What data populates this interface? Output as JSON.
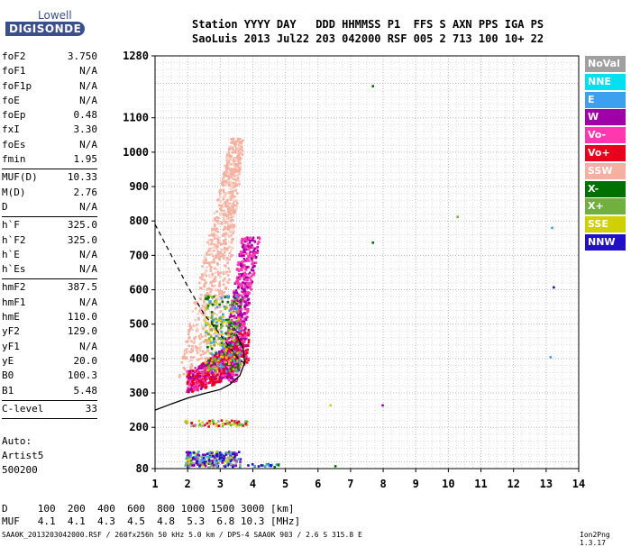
{
  "logo": {
    "line1": "Lowell",
    "line2": "DIGISONDE"
  },
  "header": {
    "row1": "Station YYYY DAY   DDD HHMMSS P1  FFS S AXN PPS IGA PS",
    "row2": "SaoLuis 2013 Jul22 203 042000 RSF 005 2 713 100 10+ 22"
  },
  "params": [
    {
      "label": "foF2",
      "value": "3.750"
    },
    {
      "label": "foF1",
      "value": "N/A"
    },
    {
      "label": "foF1p",
      "value": "N/A"
    },
    {
      "label": "foE",
      "value": "N/A"
    },
    {
      "label": "foEp",
      "value": "0.48"
    },
    {
      "label": "fxI",
      "value": "3.30"
    },
    {
      "label": "foEs",
      "value": "N/A"
    },
    {
      "label": "fmin",
      "value": "1.95"
    },
    {
      "sep": true
    },
    {
      "label": "MUF(D)",
      "value": "10.33"
    },
    {
      "label": "M(D)",
      "value": "2.76"
    },
    {
      "label": "D",
      "value": "N/A"
    },
    {
      "sep": true
    },
    {
      "label": "h`F",
      "value": "325.0"
    },
    {
      "label": "h`F2",
      "value": "325.0"
    },
    {
      "label": "h`E",
      "value": "N/A"
    },
    {
      "label": "h`Es",
      "value": "N/A"
    },
    {
      "sep": true
    },
    {
      "label": "hmF2",
      "value": "387.5"
    },
    {
      "label": "hmF1",
      "value": "N/A"
    },
    {
      "label": "hmE",
      "value": "110.0"
    },
    {
      "label": "yF2",
      "value": "129.0"
    },
    {
      "label": "yF1",
      "value": "N/A"
    },
    {
      "label": "yE",
      "value": "20.0"
    },
    {
      "label": "B0",
      "value": "100.3"
    },
    {
      "label": "B1",
      "value": "5.48"
    },
    {
      "sep": true
    },
    {
      "label": "C-level",
      "value": "33"
    },
    {
      "sep": true
    }
  ],
  "autoscaling": {
    "line1": "Auto:",
    "line2": "Artist5",
    "line3": "500200"
  },
  "legend": [
    {
      "label": "NoVal",
      "color": "#a0a0a0"
    },
    {
      "label": "NNE",
      "color": "#00e0f0"
    },
    {
      "label": "E",
      "color": "#3ca0ee"
    },
    {
      "label": "W",
      "color": "#a000a8"
    },
    {
      "label": "Vo-",
      "color": "#ff38b0"
    },
    {
      "label": "Vo+",
      "color": "#e8001c"
    },
    {
      "label": "SSW",
      "color": "#f4b0a0"
    },
    {
      "label": "X-",
      "color": "#007000"
    },
    {
      "label": "X+",
      "color": "#70b040"
    },
    {
      "label": "SSE",
      "color": "#d0d000"
    },
    {
      "label": "NNW",
      "color": "#2010c8"
    }
  ],
  "bottom": {
    "d_row": "D     100  200  400  600  800 1000 1500 3000 [km]",
    "muf_row": "MUF   4.1  4.1  4.3  4.5  4.8  5.3  6.8 10.3 [MHz]"
  },
  "footer": "SAA0K_2013203042000.RSF / 260fx256h 50 kHz 5.0 km / DPS-4 SAA0K 903 / 2.6 S 315.8 E",
  "version": "Ion2Png 1.3.17",
  "chart_data": {
    "type": "scatter",
    "xlim": [
      1,
      14
    ],
    "ylim": [
      80,
      1280
    ],
    "x_ticks": [
      1,
      2,
      3,
      4,
      5,
      6,
      7,
      8,
      9,
      10,
      11,
      12,
      13,
      14
    ],
    "y_ticks": [
      80,
      200,
      300,
      400,
      500,
      600,
      700,
      800,
      900,
      1000,
      1100,
      1280
    ],
    "grid": true,
    "profile_curve": [
      [
        1.0,
        250
      ],
      [
        1.5,
        268
      ],
      [
        2.0,
        285
      ],
      [
        2.5,
        298
      ],
      [
        3.0,
        310
      ],
      [
        3.3,
        325
      ],
      [
        3.6,
        350
      ],
      [
        3.75,
        387.5
      ],
      [
        3.7,
        430
      ],
      [
        3.5,
        470
      ]
    ],
    "muf_curve": [
      [
        1.0,
        790
      ],
      [
        1.5,
        700
      ],
      [
        2.0,
        610
      ],
      [
        2.5,
        530
      ],
      [
        3.0,
        470
      ],
      [
        3.3,
        430
      ],
      [
        3.6,
        395
      ],
      [
        3.75,
        387.5
      ]
    ],
    "isolated_points": [
      {
        "x": 7.65,
        "y": 1190,
        "color": "#007000"
      },
      {
        "x": 7.65,
        "y": 735,
        "color": "#007000"
      },
      {
        "x": 10.25,
        "y": 810,
        "color": "#70b040"
      },
      {
        "x": 13.15,
        "y": 778,
        "color": "#3ca0ee"
      },
      {
        "x": 13.2,
        "y": 605,
        "color": "#2010c8"
      },
      {
        "x": 13.1,
        "y": 402,
        "color": "#3ca0ee"
      },
      {
        "x": 6.35,
        "y": 262,
        "color": "#d0d000"
      },
      {
        "x": 7.95,
        "y": 262,
        "color": "#a000a8"
      },
      {
        "x": 6.5,
        "y": 85,
        "color": "#007000"
      }
    ]
  }
}
